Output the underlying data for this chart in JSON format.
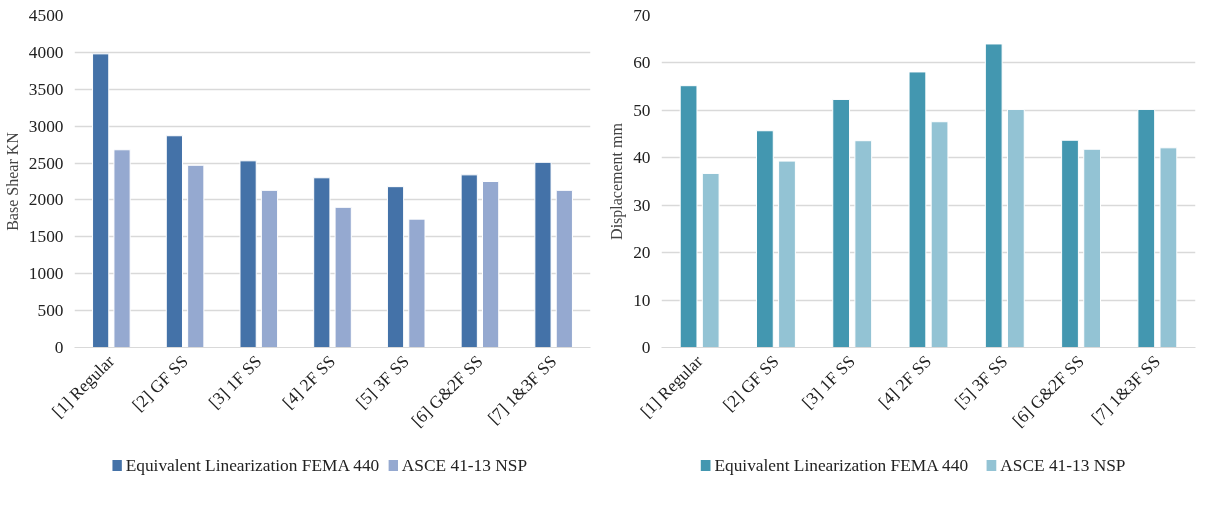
{
  "chart_data": [
    {
      "type": "bar",
      "categories": [
        "[1] Regular",
        "[2] GF SS",
        "[3] 1F SS",
        "[4] 2F SS",
        "[5] 3F SS",
        "[6] G&2F SS",
        "[7] 1&3F SS"
      ],
      "ylabel": "Base Shear KN",
      "ylim": [
        0,
        4500
      ],
      "yticks": [
        0,
        500,
        1000,
        1500,
        2000,
        2500,
        3000,
        3500,
        4000,
        4500
      ],
      "grid": "y",
      "legend": "bottom",
      "series": [
        {
          "name": "Equivalent Linearization FEMA 440",
          "color": "#4472a8",
          "values": [
            3980,
            2870,
            2530,
            2300,
            2180,
            2340,
            2510
          ]
        },
        {
          "name": "ASCE 41-13 NSP",
          "color": "#95a9d0",
          "values": [
            2680,
            2470,
            2130,
            1900,
            1740,
            2250,
            2130
          ]
        }
      ]
    },
    {
      "type": "bar",
      "categories": [
        "[1] Regular",
        "[2] GF SS",
        "[3] 1F SS",
        "[4] 2F SS",
        "[5] 3F SS",
        "[6] G&2F SS",
        "[7] 1&3F SS"
      ],
      "ylabel": "Displacement mm",
      "ylim": [
        0,
        70
      ],
      "yticks": [
        0,
        10,
        20,
        30,
        40,
        50,
        60,
        70
      ],
      "grid": "y",
      "legend": "bottom",
      "series": [
        {
          "name": "Equivalent Linearization FEMA 440",
          "color": "#4397b0",
          "values": [
            55.2,
            45.7,
            52.3,
            58.1,
            64.0,
            43.7,
            50.2
          ]
        },
        {
          "name": "ASCE 41-13 NSP",
          "color": "#93c3d4",
          "values": [
            36.7,
            39.3,
            43.6,
            47.6,
            50.2,
            41.8,
            42.1
          ]
        }
      ]
    }
  ]
}
